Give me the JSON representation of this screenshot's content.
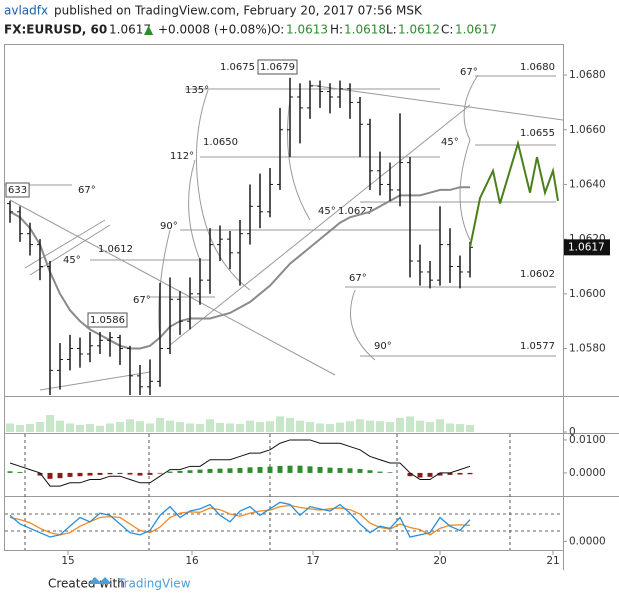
{
  "header": {
    "author": "avladfx",
    "published": "published on TradingView.com, February 20, 2017 07:56 MSK",
    "symbol": "FX:EURUSD, 60",
    "last": "1.0617",
    "arrow": "▲",
    "change": "+0.0008 (+0.08%)",
    "o_label": "O:",
    "o": "1.0613",
    "h_label": "H:",
    "h": "1.0618",
    "l_label": "L:",
    "l": "1.0612",
    "c_label": "C:",
    "c": "1.0617"
  },
  "chart_data": {
    "type": "ohlc",
    "bar_color": "#1a1a1a",
    "xlim": [
      -0.5,
      55.3
    ],
    "xticks": [
      {
        "value": 5.8,
        "label": "15"
      },
      {
        "value": 18.2,
        "label": "16"
      },
      {
        "value": 30.3,
        "label": "17"
      },
      {
        "value": 43,
        "label": "20"
      },
      {
        "value": 54.3,
        "label": "21"
      }
    ],
    "ylim": [
      1.0563,
      1.0691
    ],
    "yticks": [
      {
        "value": 1.068,
        "label": "1.0680"
      },
      {
        "value": 1.066,
        "label": "1.0660"
      },
      {
        "value": 1.064,
        "label": "1.0640"
      },
      {
        "value": 1.062,
        "label": "1.0620"
      },
      {
        "value": 1.06,
        "label": "1.0600"
      },
      {
        "value": 1.058,
        "label": "1.0580"
      }
    ],
    "bars": [
      [
        1.0633,
        1.0634,
        1.0626,
        1.063
      ],
      [
        1.063,
        1.0632,
        1.0619,
        1.0622
      ],
      [
        1.0622,
        1.0626,
        1.0614,
        1.0618
      ],
      [
        1.0618,
        1.062,
        1.0605,
        1.061
      ],
      [
        1.061,
        1.0612,
        1.056,
        1.0572
      ],
      [
        1.0572,
        1.0582,
        1.0565,
        1.0576
      ],
      [
        1.0576,
        1.0585,
        1.0572,
        1.058
      ],
      [
        1.058,
        1.0584,
        1.0573,
        1.0578
      ],
      [
        1.0578,
        1.0586,
        1.0575,
        1.0581
      ],
      [
        1.0581,
        1.0586,
        1.0578,
        1.0583
      ],
      [
        1.0583,
        1.0586,
        1.0577,
        1.0584
      ],
      [
        1.0584,
        1.0585,
        1.0574,
        1.058
      ],
      [
        1.058,
        1.0581,
        1.0563,
        1.057
      ],
      [
        1.057,
        1.0574,
        1.056,
        1.0566
      ],
      [
        1.0566,
        1.0576,
        1.0562,
        1.0568
      ],
      [
        1.0568,
        1.0604,
        1.0566,
        1.058
      ],
      [
        1.058,
        1.0606,
        1.0578,
        1.0598
      ],
      [
        1.0598,
        1.0601,
        1.0585,
        1.059
      ],
      [
        1.059,
        1.0606,
        1.0587,
        1.06
      ],
      [
        1.06,
        1.0613,
        1.0596,
        1.0605
      ],
      [
        1.0605,
        1.0624,
        1.06,
        1.0618
      ],
      [
        1.0618,
        1.0625,
        1.0612,
        1.062
      ],
      [
        1.062,
        1.0623,
        1.0609,
        1.0615
      ],
      [
        1.0615,
        1.0627,
        1.0603,
        1.0622
      ],
      [
        1.0622,
        1.064,
        1.0618,
        1.0632
      ],
      [
        1.0632,
        1.0644,
        1.0624,
        1.063
      ],
      [
        1.063,
        1.0646,
        1.0628,
        1.064
      ],
      [
        1.064,
        1.0668,
        1.0638,
        1.066
      ],
      [
        1.066,
        1.0679,
        1.065,
        1.0672
      ],
      [
        1.0672,
        1.0677,
        1.0655,
        1.0668
      ],
      [
        1.0668,
        1.0678,
        1.0664,
        1.0676
      ],
      [
        1.0676,
        1.0678,
        1.0668,
        1.0674
      ],
      [
        1.0674,
        1.0677,
        1.0666,
        1.0672
      ],
      [
        1.0672,
        1.0678,
        1.0668,
        1.0675
      ],
      [
        1.0675,
        1.0677,
        1.0664,
        1.067
      ],
      [
        1.067,
        1.0672,
        1.065,
        1.0662
      ],
      [
        1.0662,
        1.0664,
        1.0638,
        1.0645
      ],
      [
        1.0645,
        1.0652,
        1.0636,
        1.064
      ],
      [
        1.064,
        1.0648,
        1.0634,
        1.0638
      ],
      [
        1.0638,
        1.0666,
        1.0632,
        1.0648
      ],
      [
        1.0648,
        1.065,
        1.0606,
        1.0612
      ],
      [
        1.0612,
        1.0618,
        1.0603,
        1.0608
      ],
      [
        1.0608,
        1.0612,
        1.0602,
        1.0605
      ],
      [
        1.0605,
        1.0632,
        1.0603,
        1.0618
      ],
      [
        1.0618,
        1.0624,
        1.0604,
        1.061
      ],
      [
        1.061,
        1.0614,
        1.0602,
        1.0608
      ],
      [
        1.0608,
        1.0619,
        1.0606,
        1.0617
      ]
    ],
    "ma": {
      "color": "#8a8a8a",
      "values": [
        1.063,
        1.0628,
        1.0624,
        1.0618,
        1.0608,
        1.06,
        1.0594,
        1.059,
        1.0587,
        1.0585,
        1.0583,
        1.0581,
        1.058,
        1.058,
        1.0581,
        1.0584,
        1.0588,
        1.059,
        1.0591,
        1.0591,
        1.0591,
        1.0592,
        1.0593,
        1.0595,
        1.0597,
        1.06,
        1.0603,
        1.0607,
        1.0611,
        1.0614,
        1.0617,
        1.062,
        1.0623,
        1.0626,
        1.0628,
        1.0629,
        1.063,
        1.0632,
        1.0634,
        1.0636,
        1.0636,
        1.0636,
        1.0637,
        1.0638,
        1.0638,
        1.0639,
        1.0639
      ]
    },
    "forecast": {
      "color": "#4b7f1c",
      "x": [
        46,
        47,
        48.3,
        49,
        50.8,
        52,
        52.7,
        53.5,
        54.3,
        54.8
      ],
      "values": [
        1.0617,
        1.0635,
        1.0645,
        1.0633,
        1.0655,
        1.0637,
        1.065,
        1.0637,
        1.0645,
        1.0634
      ]
    },
    "annotations": [
      "1.0675",
      "1.0679",
      "135°",
      "1.0650",
      "112°",
      "90°",
      "45°",
      "1.0627",
      "67°",
      "1.0680",
      "45°",
      "1.0655",
      "1.0612",
      "45°",
      "67°",
      "633",
      "67°",
      "1.0586",
      "67°",
      "1.0602",
      "90°",
      "1.0577"
    ],
    "volume": {
      "color": "#c8e6c8",
      "ylim": [
        0,
        120
      ],
      "yticks": [
        0
      ],
      "values": [
        30,
        25,
        28,
        35,
        60,
        40,
        30,
        25,
        28,
        22,
        30,
        35,
        45,
        38,
        30,
        50,
        40,
        35,
        30,
        28,
        45,
        32,
        30,
        28,
        40,
        35,
        38,
        55,
        50,
        40,
        35,
        30,
        28,
        33,
        38,
        45,
        40,
        38,
        35,
        50,
        55,
        40,
        35,
        45,
        30,
        28,
        25
      ]
    },
    "macd": {
      "ylim": [
        -0.0067,
        0.0115
      ],
      "yticks": [
        {
          "value": 0.01,
          "label": "0.0100"
        },
        {
          "value": 0,
          "label": "0.0000"
        }
      ],
      "line_color": "#111111",
      "up_color": "#2e8b2e",
      "down_color": "#8b1a1a",
      "line": [
        0.003,
        0.002,
        0.001,
        0.0,
        -0.004,
        -0.004,
        -0.003,
        -0.003,
        -0.002,
        -0.002,
        -0.001,
        -0.001,
        -0.002,
        -0.003,
        -0.003,
        -0.001,
        0.001,
        0.001,
        0.002,
        0.002,
        0.004,
        0.004,
        0.004,
        0.005,
        0.006,
        0.006,
        0.007,
        0.009,
        0.01,
        0.01,
        0.01,
        0.009,
        0.009,
        0.009,
        0.008,
        0.007,
        0.005,
        0.004,
        0.003,
        0.003,
        0.0,
        -0.002,
        -0.002,
        0.0,
        0.0,
        0.001,
        0.002
      ],
      "hist": [
        0.0005,
        0.0003,
        0.0,
        -0.0008,
        -0.0018,
        -0.0016,
        -0.0012,
        -0.001,
        -0.0008,
        -0.0006,
        -0.0004,
        -0.0003,
        -0.0005,
        -0.0008,
        -0.0006,
        -0.0002,
        0.0004,
        0.0006,
        0.0008,
        0.001,
        0.0012,
        0.0013,
        0.0014,
        0.0015,
        0.0017,
        0.0018,
        0.0019,
        0.0021,
        0.0022,
        0.0022,
        0.002,
        0.0018,
        0.0016,
        0.0015,
        0.0014,
        0.0012,
        0.0008,
        0.0004,
        0.0002,
        0.0,
        -0.001,
        -0.0014,
        -0.0012,
        -0.0008,
        -0.0006,
        -0.0005,
        -0.0004
      ]
    },
    "stoch": {
      "ylim": [
        -20,
        100
      ],
      "yticks": [
        {
          "value": 0,
          "label": "0.0000"
        }
      ],
      "k_color": "#2a8fd8",
      "d_color": "#f08a24",
      "k": [
        60,
        40,
        30,
        20,
        10,
        15,
        35,
        55,
        45,
        65,
        60,
        40,
        20,
        15,
        25,
        60,
        80,
        55,
        70,
        75,
        85,
        60,
        45,
        70,
        80,
        60,
        75,
        90,
        85,
        60,
        80,
        75,
        70,
        85,
        65,
        40,
        20,
        35,
        30,
        55,
        10,
        15,
        20,
        55,
        35,
        25,
        50
      ],
      "d": [
        55,
        50,
        43,
        30,
        20,
        15,
        20,
        35,
        45,
        55,
        57,
        55,
        40,
        25,
        20,
        33,
        55,
        65,
        68,
        67,
        77,
        73,
        63,
        58,
        65,
        70,
        72,
        80,
        83,
        78,
        75,
        72,
        75,
        77,
        73,
        63,
        42,
        32,
        28,
        40,
        32,
        27,
        15,
        30,
        37,
        38,
        37
      ]
    }
  },
  "footer": {
    "created": "Created with",
    "brand": "TradingView"
  }
}
